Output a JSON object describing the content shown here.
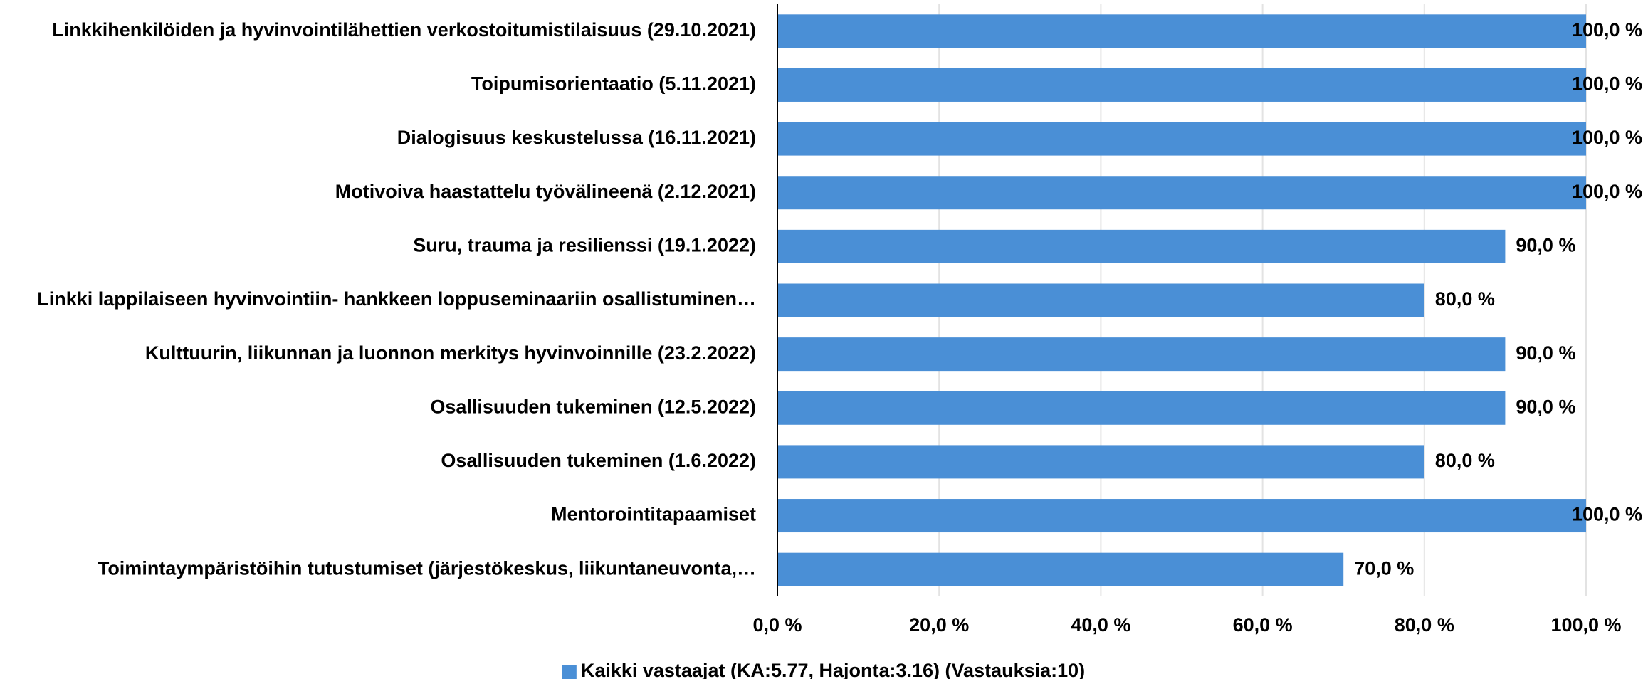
{
  "chart_data": {
    "type": "barh",
    "categories": [
      "Linkkihenkilöiden ja hyvinvointilähettien   verkostoitumistilaisuus (29.10.2021)",
      "Toipumisorientaatio (5.11.2021)",
      "Dialogisuus keskustelussa (16.11.2021)",
      "Motivoiva haastattelu työvälineenä (2.12.2021)",
      "Suru, trauma ja resilienssi (19.1.2022)",
      "Linkki lappilaiseen hyvinvointiin- hankkeen   loppuseminaariin osallistuminen…",
      "Kulttuurin, liikunnan ja luonnon merkitys hyvinvoinnille (23.2.2022)",
      "Osallisuuden tukeminen (12.5.2022)",
      "Osallisuuden tukeminen (1.6.2022)",
      "Mentorointitapaamiset",
      "Toimintaympäristöihin tutustumiset  (järjestökeskus, liikuntaneuvonta,…"
    ],
    "series": [
      {
        "name": "Kaikki vastaajat (KA:5.77, Hajonta:3.16) (Vastauksia:10)",
        "color": "#4a8fd6",
        "values": [
          100,
          100,
          100,
          100,
          90,
          80,
          90,
          90,
          80,
          100,
          70
        ],
        "value_labels": [
          "100,0 %",
          "100,0 %",
          "100,0 %",
          "100,0 %",
          "90,0 %",
          "80,0 %",
          "90,0 %",
          "90,0 %",
          "80,0 %",
          "100,0 %",
          "70,0 %"
        ]
      }
    ],
    "xlim": [
      0,
      100
    ],
    "xticks": [
      {
        "value": 0,
        "label": "0,0 %"
      },
      {
        "value": 20,
        "label": "20,0 %"
      },
      {
        "value": 40,
        "label": "40,0 %"
      },
      {
        "value": 60,
        "label": "60,0 %"
      },
      {
        "value": 80,
        "label": "80,0 %"
      },
      {
        "value": 100,
        "label": "100,0 %"
      }
    ],
    "grid": true,
    "legend": "bottom"
  }
}
